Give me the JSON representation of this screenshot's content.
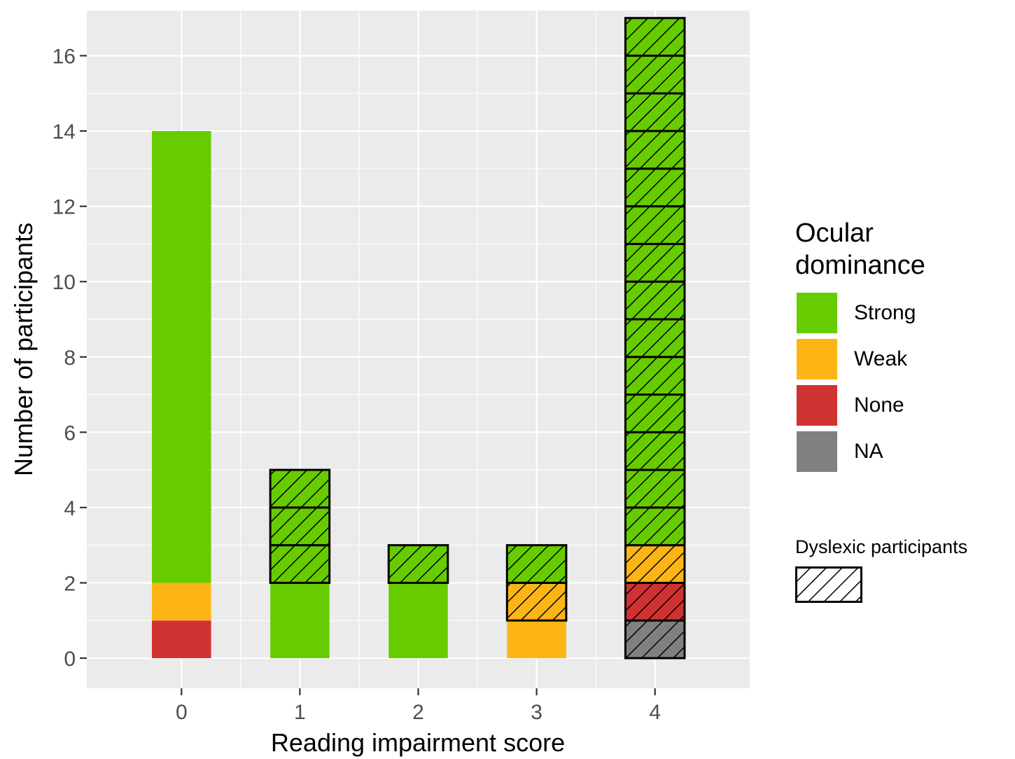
{
  "chart_data": {
    "type": "bar",
    "stacked": true,
    "xlabel": "Reading impairment score",
    "ylabel": "Number of participants",
    "categories": [
      "0",
      "1",
      "2",
      "3",
      "4"
    ],
    "ylim": [
      -0.8,
      17.2
    ],
    "yticks": [
      "0",
      "2",
      "4",
      "6",
      "8",
      "10",
      "12",
      "14",
      "16"
    ],
    "ytick_values": [
      0,
      2,
      4,
      6,
      8,
      10,
      12,
      14,
      16
    ],
    "grid": true,
    "legend_position": "right",
    "legend": {
      "title_line1": "Ocular",
      "title_line2": "dominance",
      "entries": [
        {
          "label": "Strong",
          "color": "#66cc00"
        },
        {
          "label": "Weak",
          "color": "#fdb515"
        },
        {
          "label": "None",
          "color": "#d03232"
        },
        {
          "label": "NA",
          "color": "#808080"
        }
      ],
      "pattern_title": "Dyslexic participants"
    },
    "segments": [
      {
        "category": "0",
        "group": "None",
        "count": 1,
        "dyslexic": false
      },
      {
        "category": "0",
        "group": "Weak",
        "count": 1,
        "dyslexic": false
      },
      {
        "category": "0",
        "group": "Strong",
        "count": 12,
        "dyslexic": false
      },
      {
        "category": "1",
        "group": "Strong",
        "count": 2,
        "dyslexic": false
      },
      {
        "category": "1",
        "group": "Strong",
        "count": 3,
        "dyslexic": true
      },
      {
        "category": "2",
        "group": "Strong",
        "count": 2,
        "dyslexic": false
      },
      {
        "category": "2",
        "group": "Strong",
        "count": 1,
        "dyslexic": true
      },
      {
        "category": "3",
        "group": "Weak",
        "count": 1,
        "dyslexic": false
      },
      {
        "category": "3",
        "group": "Weak",
        "count": 1,
        "dyslexic": true
      },
      {
        "category": "3",
        "group": "Strong",
        "count": 1,
        "dyslexic": true
      },
      {
        "category": "4",
        "group": "NA",
        "count": 1,
        "dyslexic": true
      },
      {
        "category": "4",
        "group": "None",
        "count": 1,
        "dyslexic": true
      },
      {
        "category": "4",
        "group": "Weak",
        "count": 1,
        "dyslexic": true
      },
      {
        "category": "4",
        "group": "Strong",
        "count": 14,
        "dyslexic": true
      }
    ]
  }
}
